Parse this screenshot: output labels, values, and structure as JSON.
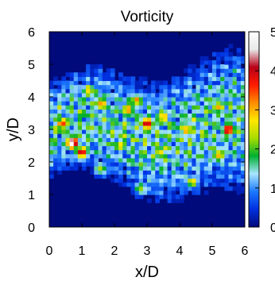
{
  "chart_data": {
    "type": "heatmap",
    "title": "Vorticity",
    "xlabel": "x/D",
    "ylabel": "y/D",
    "xlim": [
      0,
      6
    ],
    "ylim": [
      0,
      6
    ],
    "xticks": [
      "0",
      "1",
      "2",
      "3",
      "4",
      "5",
      "6"
    ],
    "yticks": [
      "0",
      "1",
      "2",
      "3",
      "4",
      "5",
      "6"
    ],
    "colorbar": {
      "range": [
        0,
        5
      ],
      "ticks": [
        "0",
        "1",
        "2",
        "3",
        "4",
        "5"
      ]
    },
    "colormap": [
      "#000a7a",
      "#0030e0",
      "#1c78ff",
      "#a8e6ff",
      "#00b030",
      "#a8dc00",
      "#ffe800",
      "#ff8c00",
      "#ff1a00",
      "#b80018",
      "#e8e8e8",
      "#ffffff"
    ],
    "hotspots": [
      {
        "x": 0.7,
        "y": 2.6,
        "value": 5.0
      },
      {
        "x": 1.0,
        "y": 2.3,
        "value": 4.0
      },
      {
        "x": 0.4,
        "y": 3.2,
        "value": 3.4
      },
      {
        "x": 1.6,
        "y": 3.8,
        "value": 3.2
      },
      {
        "x": 1.2,
        "y": 4.2,
        "value": 3.0
      },
      {
        "x": 2.4,
        "y": 3.6,
        "value": 3.3
      },
      {
        "x": 3.0,
        "y": 3.2,
        "value": 4.4
      },
      {
        "x": 2.7,
        "y": 3.9,
        "value": 3.0
      },
      {
        "x": 3.5,
        "y": 3.4,
        "value": 3.2
      },
      {
        "x": 4.2,
        "y": 3.0,
        "value": 3.0
      },
      {
        "x": 5.5,
        "y": 3.0,
        "value": 4.2
      },
      {
        "x": 5.2,
        "y": 2.2,
        "value": 3.2
      },
      {
        "x": 5.2,
        "y": 3.7,
        "value": 3.0
      },
      {
        "x": 2.2,
        "y": 2.5,
        "value": 2.8
      },
      {
        "x": 3.4,
        "y": 2.3,
        "value": 2.8
      },
      {
        "x": 4.4,
        "y": 1.4,
        "value": 2.6
      },
      {
        "x": 1.6,
        "y": 1.8,
        "value": 2.4
      },
      {
        "x": 2.8,
        "y": 1.2,
        "value": 2.2
      }
    ],
    "grid": false
  }
}
